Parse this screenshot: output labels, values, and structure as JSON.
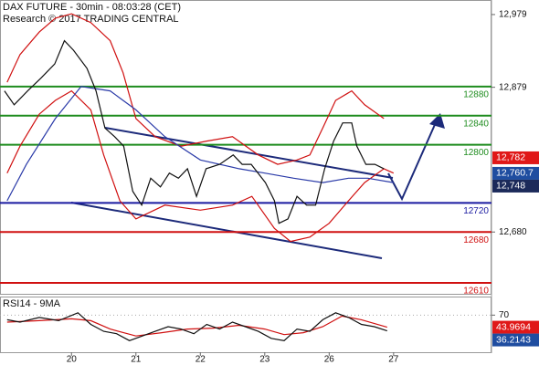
{
  "chart_data": [
    {
      "type": "line",
      "title": "DAX FUTURE - 30min - 08:03:28 (CET)",
      "subtitle": "Research © 2017 TRADING CENTRAL",
      "xlim": [
        -1.11,
        6.52
      ],
      "ylim": [
        12595,
        12999
      ],
      "yticks": [
        {
          "value": 12979,
          "label": "12,979"
        },
        {
          "value": 12879,
          "label": "12,879"
        },
        {
          "value": 12680,
          "label": "12,680"
        }
      ],
      "levels": [
        {
          "value": 12880,
          "color": "#1e8c1e"
        },
        {
          "value": 12840,
          "color": "#1e8c1e"
        },
        {
          "value": 12800,
          "color": "#1e8c1e"
        },
        {
          "value": 12720,
          "color": "#1a1aa0"
        },
        {
          "value": 12680,
          "color": "#d01010"
        },
        {
          "value": 12610,
          "color": "#d01010"
        }
      ],
      "markers": [
        {
          "value": 12782,
          "label": "12,782",
          "color": "#e01818"
        },
        {
          "value": 12760.7,
          "label": "12,760.7",
          "color": "#1f4da0"
        },
        {
          "value": 12748,
          "label": "12,748",
          "color": "#1c2a5a"
        }
      ],
      "series": [
        {
          "color": "#d01010",
          "x": [
            -1.0,
            -0.8,
            -0.5,
            -0.25,
            0,
            0.3,
            0.6,
            0.8,
            1.0,
            1.3,
            1.7,
            2.1,
            2.5,
            2.9,
            3.2,
            3.5,
            3.7,
            3.9,
            4.1,
            4.35,
            4.55,
            4.85
          ],
          "values": [
            12886,
            12924,
            12955,
            12974,
            12980,
            12968,
            12943,
            12899,
            12836,
            12811,
            12798,
            12805,
            12811,
            12786,
            12773,
            12779,
            12786,
            12823,
            12861,
            12874,
            12855,
            12836
          ]
        },
        {
          "color": "#d01010",
          "x": [
            -1.0,
            -0.8,
            -0.5,
            -0.25,
            0,
            0.3,
            0.5,
            0.75,
            1.0,
            1.45,
            2.0,
            2.5,
            2.8,
            3.15,
            3.4,
            3.7,
            4.0,
            4.3,
            4.55,
            4.85,
            5.0
          ],
          "values": [
            12761,
            12798,
            12842,
            12861,
            12874,
            12848,
            12786,
            12723,
            12698,
            12717,
            12710,
            12717,
            12729,
            12685,
            12667,
            12673,
            12692,
            12723,
            12748,
            12767,
            12761
          ]
        },
        {
          "color": "#2a3aa8",
          "x": [
            -1.0,
            -0.7,
            -0.25,
            0.15,
            0.6,
            1.0,
            1.45,
            2.0,
            2.6,
            3.0,
            3.45,
            3.9,
            4.3,
            4.6,
            5.0
          ],
          "values": [
            12723,
            12773,
            12836,
            12880,
            12874,
            12848,
            12811,
            12779,
            12767,
            12761,
            12754,
            12748,
            12754,
            12754,
            12748
          ]
        },
        {
          "color": "#111111",
          "x": [
            -1.04,
            -0.89,
            -0.68,
            -0.47,
            -0.26,
            -0.11,
            0.03,
            0.24,
            0.38,
            0.52,
            0.67,
            0.81,
            0.95,
            1.09,
            1.23,
            1.38,
            1.52,
            1.66,
            1.8,
            1.94,
            2.09,
            2.3,
            2.51,
            2.65,
            2.79,
            3.01,
            3.15,
            3.22,
            3.36,
            3.5,
            3.65,
            3.79,
            3.93,
            4.07,
            4.21,
            4.35,
            4.43,
            4.57,
            4.71,
            4.85
          ],
          "values": [
            12874,
            12855,
            12874,
            12892,
            12911,
            12943,
            12930,
            12905,
            12874,
            12823,
            12811,
            12798,
            12736,
            12717,
            12754,
            12742,
            12761,
            12754,
            12767,
            12729,
            12767,
            12773,
            12786,
            12773,
            12773,
            12748,
            12723,
            12692,
            12698,
            12729,
            12717,
            12717,
            12767,
            12805,
            12830,
            12830,
            12798,
            12773,
            12773,
            12767
          ]
        }
      ]
    },
    {
      "type": "line",
      "title": "RSI14 - 9MA",
      "xlim": [
        -1.11,
        6.52
      ],
      "ylim": [
        -10,
        110
      ],
      "yticks": [
        70
      ],
      "xticks": [
        {
          "value": 0,
          "label": "20"
        },
        {
          "value": 1,
          "label": "21"
        },
        {
          "value": 2,
          "label": "22"
        },
        {
          "value": 3,
          "label": "23"
        },
        {
          "value": 4,
          "label": "26"
        },
        {
          "value": 5,
          "label": "27"
        }
      ],
      "markers": [
        {
          "value": 43.9694,
          "color": "#e01818"
        },
        {
          "value": 36.2143,
          "color": "#1f4da0"
        }
      ],
      "series": [
        {
          "color": "#d01010",
          "x": [
            -1.0,
            -0.5,
            0,
            0.3,
            0.6,
            1.0,
            1.4,
            1.8,
            2.2,
            2.6,
            3.0,
            3.3,
            3.6,
            3.9,
            4.2,
            4.5,
            4.9
          ],
          "values": [
            55,
            58,
            62,
            58,
            40,
            25,
            32,
            40,
            42,
            48,
            40,
            28,
            32,
            45,
            68,
            60,
            44
          ]
        },
        {
          "color": "#111111",
          "x": [
            -1.0,
            -0.8,
            -0.5,
            -0.2,
            0.1,
            0.3,
            0.5,
            0.7,
            0.9,
            1.1,
            1.3,
            1.5,
            1.7,
            1.9,
            2.1,
            2.3,
            2.5,
            2.7,
            2.9,
            3.1,
            3.3,
            3.5,
            3.7,
            3.9,
            4.1,
            4.3,
            4.5,
            4.7,
            4.9
          ],
          "values": [
            60,
            55,
            65,
            58,
            75,
            50,
            35,
            30,
            15,
            25,
            35,
            45,
            40,
            30,
            50,
            40,
            55,
            45,
            35,
            20,
            15,
            40,
            35,
            60,
            75,
            65,
            50,
            45,
            36
          ]
        }
      ]
    }
  ]
}
